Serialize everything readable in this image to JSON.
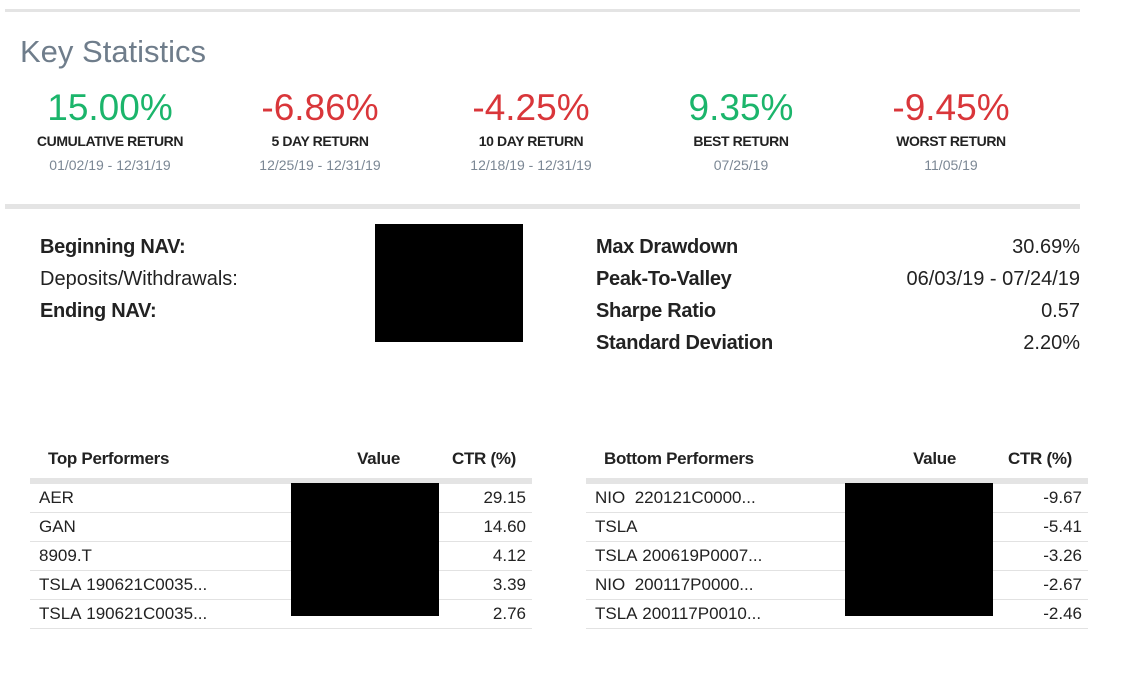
{
  "section_title": "Key Statistics",
  "colors": {
    "positive": "#1bb56b",
    "negative": "#d9363a",
    "muted": "#7b8794"
  },
  "stats": [
    {
      "value": "15.00%",
      "label": "CUMULATIVE RETURN",
      "range": "01/02/19 - 12/31/19",
      "tone": "positive"
    },
    {
      "value": "-6.86%",
      "label": "5 DAY RETURN",
      "range": "12/25/19 - 12/31/19",
      "tone": "negative"
    },
    {
      "value": "-4.25%",
      "label": "10 DAY RETURN",
      "range": "12/18/19 - 12/31/19",
      "tone": "negative"
    },
    {
      "value": "9.35%",
      "label": "BEST RETURN",
      "range": "07/25/19",
      "tone": "positive"
    },
    {
      "value": "-9.45%",
      "label": "WORST RETURN",
      "range": "11/05/19",
      "tone": "negative"
    }
  ],
  "nav": {
    "beginning_label": "Beginning NAV:",
    "deposits_label": "Deposits/Withdrawals:",
    "ending_label": "Ending NAV:"
  },
  "risk": [
    {
      "label": "Max Drawdown",
      "value": "30.69%"
    },
    {
      "label": "Peak-To-Valley",
      "value": "06/03/19 - 07/24/19"
    },
    {
      "label": "Sharpe Ratio",
      "value": "0.57"
    },
    {
      "label": "Standard Deviation",
      "value": "2.20%"
    }
  ],
  "top_performers": {
    "headers": {
      "name": "Top Performers",
      "value": "Value",
      "ctr": "CTR (%)"
    },
    "rows": [
      {
        "symbol": "AER",
        "contract": "",
        "ctr": "29.15"
      },
      {
        "symbol": "GAN",
        "contract": "",
        "ctr": "14.60"
      },
      {
        "symbol": "8909.T",
        "contract": "",
        "ctr": "4.12"
      },
      {
        "symbol": "TSLA",
        "contract": "190621C0035...",
        "ctr": "3.39"
      },
      {
        "symbol": "TSLA",
        "contract": "190621C0035...",
        "ctr": "2.76"
      }
    ]
  },
  "bottom_performers": {
    "headers": {
      "name": "Bottom Performers",
      "value": "Value",
      "ctr": "CTR (%)"
    },
    "rows": [
      {
        "symbol": "NIO",
        "contract": "220121C0000...",
        "ctr": "-9.67"
      },
      {
        "symbol": "TSLA",
        "contract": "",
        "ctr": "-5.41"
      },
      {
        "symbol": "TSLA",
        "contract": "200619P0007...",
        "ctr": "-3.26"
      },
      {
        "symbol": "NIO",
        "contract": "200117P0000...",
        "ctr": "-2.67"
      },
      {
        "symbol": "TSLA",
        "contract": "200117P0010...",
        "ctr": "-2.46"
      }
    ]
  }
}
